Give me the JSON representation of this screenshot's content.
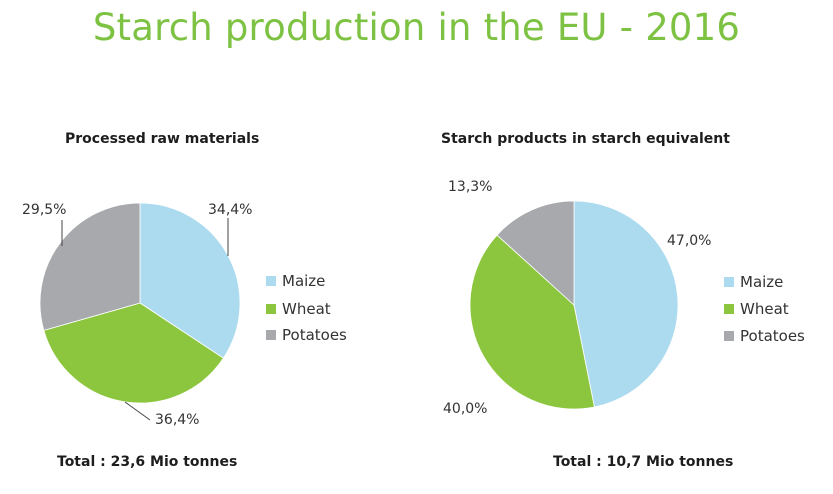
{
  "title": "Starch production in the EU - 2016",
  "colors": {
    "title": "#7dc242",
    "Maize": "#acdbef",
    "Wheat": "#8cc63f",
    "Potatoes": "#a7a9ac"
  },
  "chart_data": [
    {
      "type": "pie",
      "title": "Processed raw materials",
      "categories": [
        "Maize",
        "Wheat",
        "Potatoes"
      ],
      "values": [
        34.4,
        36.4,
        29.5
      ],
      "labels": [
        "34,4%",
        "36,4%",
        "29,5%"
      ],
      "legend": [
        "Maize",
        "Wheat",
        "Potatoes"
      ],
      "legend_position": "right",
      "total": "Total : 23,6 Mio tonnes"
    },
    {
      "type": "pie",
      "title": "Starch products in starch equivalent",
      "categories": [
        "Maize",
        "Wheat",
        "Potatoes"
      ],
      "values": [
        47.0,
        40.0,
        13.3
      ],
      "labels": [
        "47,0%",
        "40,0%",
        "13,3%"
      ],
      "legend": [
        "Maize",
        "Wheat",
        "Potatoes"
      ],
      "legend_position": "right",
      "total": "Total : 10,7 Mio tonnes"
    }
  ]
}
